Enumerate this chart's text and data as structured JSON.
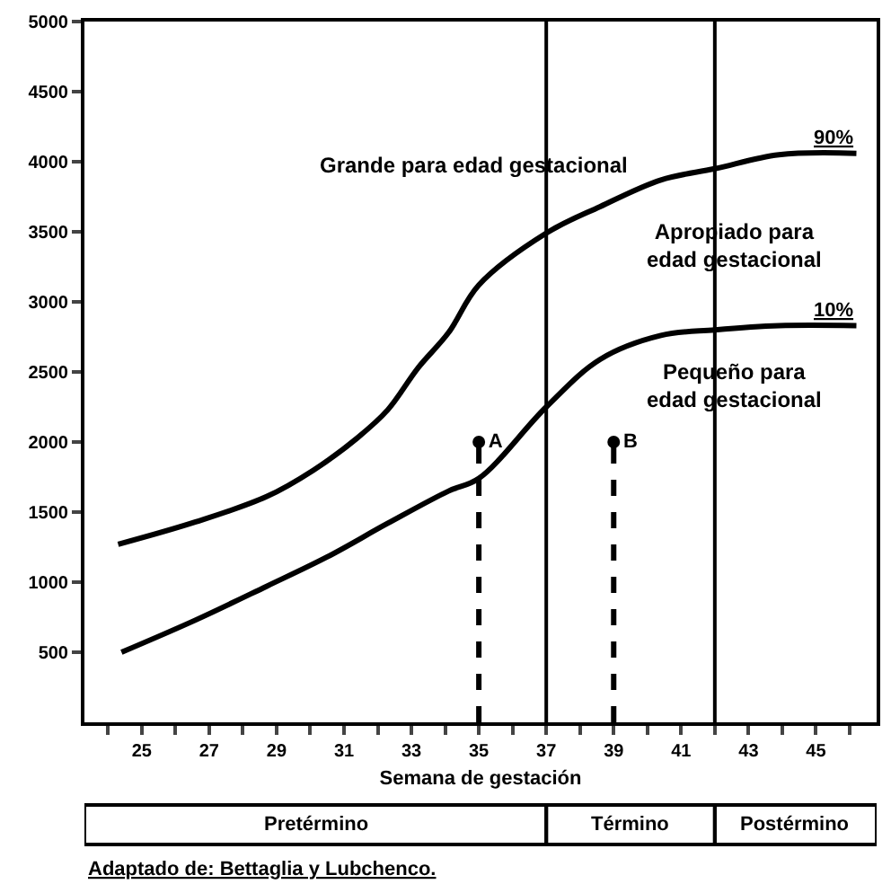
{
  "chart_data": {
    "type": "line",
    "xlabel": "Semana de gestación",
    "xlim": [
      23.3,
      46.8
    ],
    "xticks": [
      {
        "value": 24,
        "label": null
      },
      25,
      {
        "value": 26,
        "label": null
      },
      27,
      {
        "value": 28,
        "label": null
      },
      29,
      {
        "value": 30,
        "label": null
      },
      31,
      {
        "value": 32,
        "label": null
      },
      33,
      {
        "value": 34,
        "label": null
      },
      35,
      {
        "value": 36,
        "label": null
      },
      37,
      {
        "value": 38,
        "label": null
      },
      39,
      {
        "value": 40,
        "label": null
      },
      41,
      {
        "value": 42,
        "label": null
      },
      43,
      {
        "value": 44,
        "label": null
      },
      45,
      {
        "value": 46,
        "label": null
      }
    ],
    "ylim": [
      0,
      5000
    ],
    "yticks": [
      500,
      1000,
      1500,
      2000,
      2500,
      3000,
      3500,
      4000,
      4500,
      5000
    ],
    "grid": false,
    "legend": false,
    "marker": "none",
    "line_style": "solid",
    "series": [
      {
        "name": "90%",
        "color": "#000000",
        "x": [
          24.3,
          26.6,
          28.7,
          30.1,
          31.4,
          32.3,
          33.2,
          34.1,
          35,
          37,
          38.6,
          40.4,
          42,
          43.9,
          46.2
        ],
        "values": [
          1270,
          1430,
          1610,
          1800,
          2030,
          2230,
          2530,
          2780,
          3120,
          3490,
          3680,
          3870,
          3950,
          4050,
          4060
        ]
      },
      {
        "name": "10%",
        "color": "#000000",
        "x": [
          24.4,
          26.6,
          28.7,
          30.5,
          32.3,
          34.1,
          35,
          37,
          38.6,
          40.4,
          42,
          43.9,
          46.2
        ],
        "values": [
          500,
          730,
          970,
          1180,
          1420,
          1650,
          1740,
          2250,
          2590,
          2760,
          2800,
          2830,
          2830
        ]
      },
      {
        "type": "line",
        "color": "#000000",
        "line_style": "dashed",
        "x": [
          35,
          35
        ],
        "values": [
          0,
          2000
        ]
      },
      {
        "type": "line",
        "color": "#000000",
        "line_style": "dashed",
        "x": [
          39,
          39
        ],
        "values": [
          0,
          2000
        ]
      },
      {
        "type": "scatter",
        "color": "#000000",
        "marker": "circle",
        "x": [
          35,
          39
        ],
        "values": [
          2000,
          2000
        ],
        "value_labels": [
          "A",
          "B"
        ]
      }
    ],
    "ref_lines": [
      {
        "axis": "x",
        "value": 37,
        "color": "#000000"
      },
      {
        "axis": "x",
        "value": 42,
        "color": "#000000"
      }
    ],
    "annotations": [
      "Grande para edad gestacional",
      "Apropiado para\nedad gestacional",
      "Pequeño para\nedad gestacional",
      "Pretérmino",
      "Término",
      "Postérmino",
      "Adaptado de: Bettaglia y Lubchenco."
    ]
  }
}
